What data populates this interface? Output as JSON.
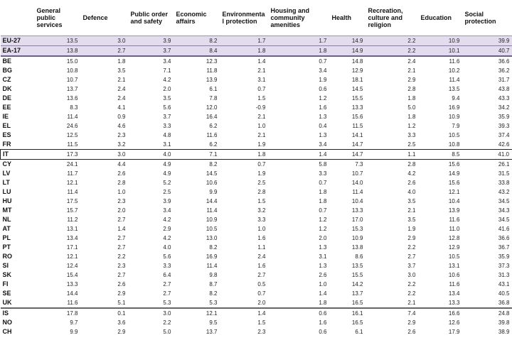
{
  "table": {
    "header": [
      "General public services",
      "Defence",
      "Public order and safety",
      "Economic affairs",
      "Environmental protection",
      "Housing and community amenities",
      "Health",
      "Recreation, culture and religion",
      "Education",
      "Social protection"
    ],
    "rows": [
      [
        "EU-27",
        "13.5",
        "3.0",
        "3.9",
        "8.2",
        "1.7",
        "1.7",
        "14.9",
        "2.2",
        "10.9",
        "39.9"
      ],
      [
        "EA-17",
        "13.8",
        "2.7",
        "3.7",
        "8.4",
        "1.8",
        "1.8",
        "14.9",
        "2.2",
        "10.1",
        "40.7"
      ],
      [
        "BE",
        "15.0",
        "1.8",
        "3.4",
        "12.3",
        "1.4",
        "0.7",
        "14.8",
        "2.4",
        "11.6",
        "36.6"
      ],
      [
        "BG",
        "10.8",
        "3.5",
        "7.1",
        "11.8",
        "2.1",
        "3.4",
        "12.9",
        "2.1",
        "10.2",
        "36.2"
      ],
      [
        "CZ",
        "10.7",
        "2.1",
        "4.2",
        "13.9",
        "3.1",
        "1.9",
        "18.1",
        "2.9",
        "11.4",
        "31.7"
      ],
      [
        "DK",
        "13.7",
        "2.4",
        "2.0",
        "6.1",
        "0.7",
        "0.6",
        "14.5",
        "2.8",
        "13.5",
        "43.8"
      ],
      [
        "DE",
        "13.6",
        "2.4",
        "3.5",
        "7.8",
        "1.5",
        "1.2",
        "15.5",
        "1.8",
        "9.4",
        "43.3"
      ],
      [
        "EE",
        "8.3",
        "4.1",
        "5.6",
        "12.0",
        "-0.9",
        "1.6",
        "13.3",
        "5.0",
        "16.9",
        "34.2"
      ],
      [
        "IE",
        "11.4",
        "0.9",
        "3.7",
        "16.4",
        "2.1",
        "1.3",
        "15.6",
        "1.8",
        "10.9",
        "35.9"
      ],
      [
        "EL",
        "24.6",
        "4.6",
        "3.3",
        "6.2",
        "1.0",
        "0.4",
        "11.5",
        "1.2",
        "7.9",
        "39.3"
      ],
      [
        "ES",
        "12.5",
        "2.3",
        "4.8",
        "11.6",
        "2.1",
        "1.3",
        "14.1",
        "3.3",
        "10.5",
        "37.4"
      ],
      [
        "FR",
        "11.5",
        "3.2",
        "3.1",
        "6.2",
        "1.9",
        "3.4",
        "14.7",
        "2.5",
        "10.8",
        "42.6"
      ],
      [
        "IT",
        "17.3",
        "3.0",
        "4.0",
        "7.1",
        "1.8",
        "1.4",
        "14.7",
        "1.1",
        "8.5",
        "41.0"
      ],
      [
        "CY",
        "24.1",
        "4.4",
        "4.9",
        "8.2",
        "0.7",
        "5.8",
        "7.3",
        "2.8",
        "15.6",
        "26.1"
      ],
      [
        "LV",
        "11.7",
        "2.6",
        "4.9",
        "14.5",
        "1.9",
        "3.3",
        "10.7",
        "4.2",
        "14.9",
        "31.5"
      ],
      [
        "LT",
        "12.1",
        "2.8",
        "5.2",
        "10.6",
        "2.5",
        "0.7",
        "14.0",
        "2.6",
        "15.6",
        "33.8"
      ],
      [
        "LU",
        "11.4",
        "1.0",
        "2.5",
        "9.9",
        "2.8",
        "1.8",
        "11.4",
        "4.0",
        "12.1",
        "43.2"
      ],
      [
        "HU",
        "17.5",
        "2.3",
        "3.9",
        "14.4",
        "1.5",
        "1.8",
        "10.4",
        "3.5",
        "10.4",
        "34.5"
      ],
      [
        "MT",
        "15.7",
        "2.0",
        "3.4",
        "11.4",
        "3.2",
        "0.7",
        "13.3",
        "2.1",
        "13.9",
        "34.3"
      ],
      [
        "NL",
        "11.2",
        "2.7",
        "4.2",
        "10.9",
        "3.3",
        "1.2",
        "17.0",
        "3.5",
        "11.6",
        "34.5"
      ],
      [
        "AT",
        "13.1",
        "1.4",
        "2.9",
        "10.5",
        "1.0",
        "1.2",
        "15.3",
        "1.9",
        "11.0",
        "41.6"
      ],
      [
        "PL",
        "13.4",
        "2.7",
        "4.2",
        "13.0",
        "1.6",
        "2.0",
        "10.9",
        "2.9",
        "12.8",
        "36.6"
      ],
      [
        "PT",
        "17.1",
        "2.7",
        "4.0",
        "8.2",
        "1.1",
        "1.3",
        "13.8",
        "2.2",
        "12.9",
        "36.7"
      ],
      [
        "RO",
        "12.1",
        "2.2",
        "5.6",
        "16.9",
        "2.4",
        "3.1",
        "8.6",
        "2.7",
        "10.5",
        "35.9"
      ],
      [
        "SI",
        "12.4",
        "2.3",
        "3.3",
        "11.4",
        "1.6",
        "1.3",
        "13.5",
        "3.7",
        "13.1",
        "37.3"
      ],
      [
        "SK",
        "15.4",
        "2.7",
        "6.4",
        "9.8",
        "2.7",
        "2.6",
        "15.5",
        "3.0",
        "10.6",
        "31.3"
      ],
      [
        "FI",
        "13.3",
        "2.6",
        "2.7",
        "8.7",
        "0.5",
        "1.0",
        "14.2",
        "2.2",
        "11.6",
        "43.1"
      ],
      [
        "SE",
        "14.4",
        "2.9",
        "2.7",
        "8.2",
        "0.7",
        "1.4",
        "13.7",
        "2.2",
        "13.4",
        "40.5"
      ],
      [
        "UK",
        "11.6",
        "5.1",
        "5.3",
        "5.3",
        "2.0",
        "1.8",
        "16.5",
        "2.1",
        "13.3",
        "36.8"
      ],
      [
        "IS",
        "17.8",
        "0.1",
        "3.0",
        "12.1",
        "1.4",
        "0.6",
        "16.1",
        "7.4",
        "16.6",
        "24.8"
      ],
      [
        "NO",
        "9.7",
        "3.6",
        "2.2",
        "9.5",
        "1.5",
        "1.6",
        "16.5",
        "2.9",
        "12.6",
        "39.8"
      ],
      [
        "CH",
        "9.9",
        "2.9",
        "5.0",
        "13.7",
        "2.3",
        "0.6",
        "6.1",
        "2.6",
        "17.9",
        "38.9"
      ]
    ]
  }
}
